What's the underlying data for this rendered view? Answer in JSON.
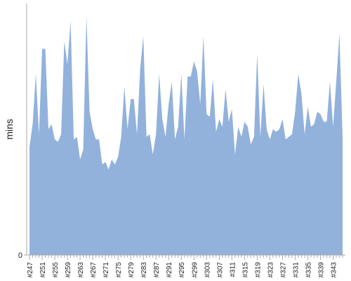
{
  "chart_data": {
    "type": "area",
    "y_label": "mins",
    "categories": [
      "#247",
      null,
      null,
      null,
      "#251",
      null,
      null,
      null,
      "#255",
      null,
      null,
      null,
      "#259",
      null,
      null,
      null,
      "#263",
      null,
      null,
      null,
      "#267",
      null,
      null,
      null,
      "#271",
      null,
      null,
      null,
      "#275",
      null,
      null,
      null,
      "#279",
      null,
      null,
      null,
      "#283",
      null,
      null,
      null,
      "#287",
      null,
      null,
      null,
      "#291",
      null,
      null,
      null,
      "#295",
      null,
      null,
      null,
      "#299",
      null,
      null,
      null,
      "#303",
      null,
      null,
      null,
      "#307",
      null,
      null,
      null,
      "#311",
      null,
      null,
      null,
      "#315",
      null,
      null,
      null,
      "#319",
      null,
      null,
      null,
      "#323",
      null,
      null,
      null,
      "#327",
      null,
      null,
      null,
      "#331",
      null,
      null,
      null,
      "#335",
      null,
      null,
      null,
      "#339",
      null,
      null,
      null,
      "#343",
      null,
      null,
      null
    ],
    "values": [
      43,
      52,
      72,
      48,
      82,
      82,
      50,
      52,
      46,
      45,
      48,
      85,
      76,
      93,
      46,
      47,
      38,
      42,
      95,
      57,
      50,
      46,
      46,
      36,
      37,
      34,
      38,
      36,
      39,
      47,
      67,
      50,
      62,
      62,
      48,
      74,
      87,
      47,
      48,
      40,
      48,
      72,
      54,
      47,
      60,
      69,
      46,
      51,
      72,
      46,
      71,
      71,
      77,
      73,
      60,
      87,
      56,
      55,
      70,
      49,
      54,
      51,
      66,
      53,
      58,
      40,
      51,
      47,
      53,
      51,
      44,
      47,
      80,
      47,
      68,
      50,
      46,
      50,
      49,
      50,
      54,
      46,
      47,
      48,
      57,
      72,
      64,
      48,
      59,
      51,
      52,
      57,
      56,
      53,
      53,
      69,
      51,
      69,
      88,
      47
    ],
    "color": "#92b2dc",
    "ylim": [
      0,
      100
    ],
    "yticks": [
      0
    ]
  }
}
